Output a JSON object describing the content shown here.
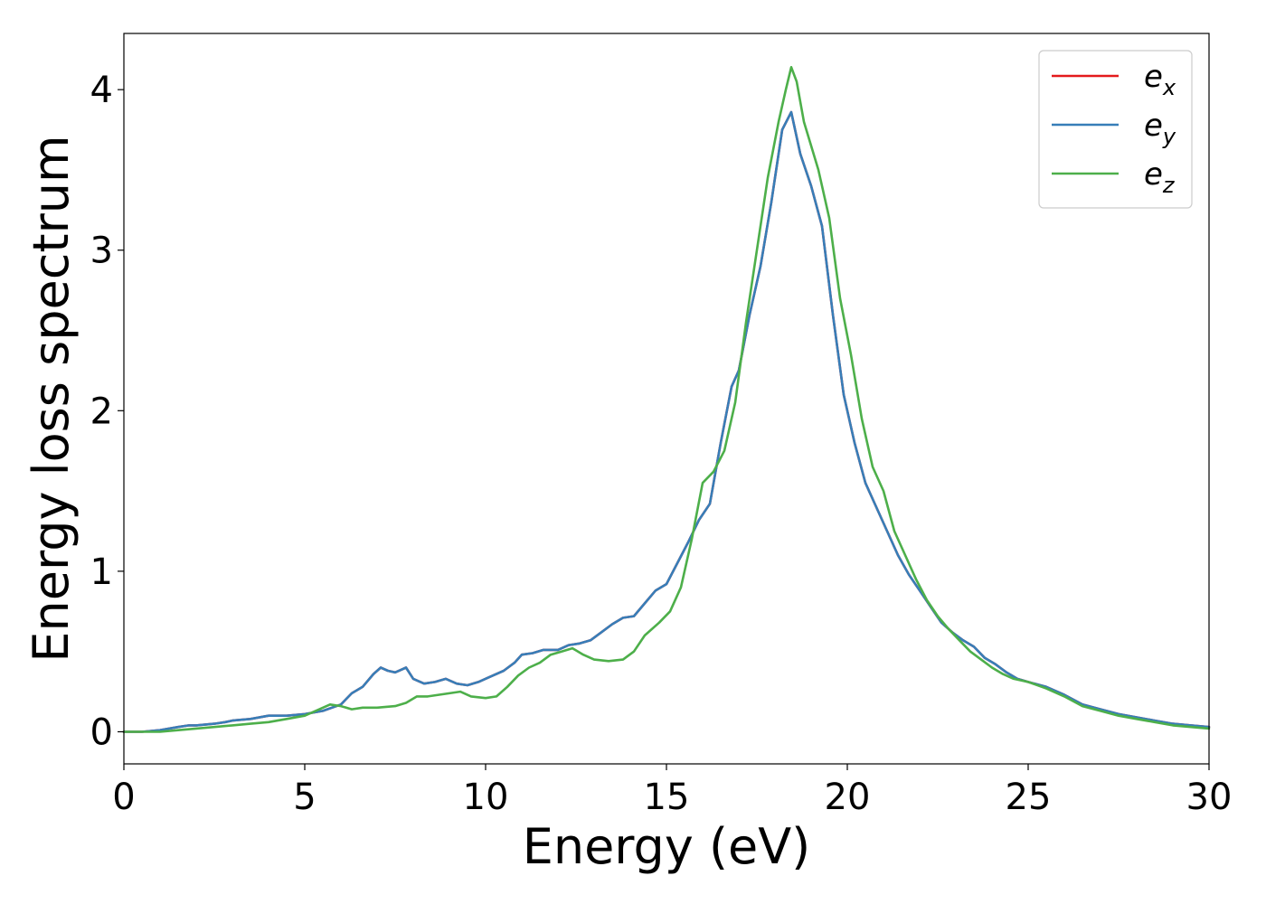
{
  "chart_data": {
    "type": "line",
    "title": "",
    "xlabel": "Energy (eV)",
    "ylabel": "Energy loss spectrum",
    "xlim": [
      0,
      30
    ],
    "ylim": [
      -0.2,
      4.35
    ],
    "xticks": [
      0,
      5,
      10,
      15,
      20,
      25,
      30
    ],
    "yticks": [
      0,
      1,
      2,
      3,
      4
    ],
    "grid": false,
    "legend_position": "top-right",
    "series": [
      {
        "name": "x",
        "color": "#e41a1c",
        "x": [
          0,
          0.5,
          1,
          1.5,
          1.8,
          2,
          2.5,
          2.8,
          3,
          3.5,
          4,
          4.5,
          5,
          5.5,
          6,
          6.3,
          6.6,
          6.9,
          7.1,
          7.3,
          7.5,
          7.8,
          8.0,
          8.3,
          8.6,
          8.9,
          9.2,
          9.5,
          9.8,
          10.1,
          10.5,
          10.8,
          11.0,
          11.3,
          11.6,
          12.0,
          12.3,
          12.6,
          12.9,
          13.2,
          13.5,
          13.8,
          14.1,
          14.4,
          14.7,
          15.0,
          15.3,
          15.6,
          15.9,
          16.2,
          16.5,
          16.8,
          17.0,
          17.3,
          17.6,
          17.9,
          18.2,
          18.45,
          18.7,
          19.0,
          19.3,
          19.6,
          19.9,
          20.2,
          20.5,
          20.8,
          21.1,
          21.4,
          21.7,
          22.0,
          22.3,
          22.6,
          22.9,
          23.2,
          23.5,
          23.8,
          24.1,
          24.4,
          24.7,
          25.0,
          25.5,
          26.0,
          26.5,
          27.0,
          27.5,
          28.0,
          28.5,
          29.0,
          29.5,
          30.0
        ],
        "y": [
          0,
          0,
          0.01,
          0.03,
          0.04,
          0.04,
          0.05,
          0.06,
          0.07,
          0.08,
          0.1,
          0.1,
          0.11,
          0.13,
          0.17,
          0.24,
          0.28,
          0.36,
          0.4,
          0.38,
          0.37,
          0.4,
          0.33,
          0.3,
          0.31,
          0.33,
          0.3,
          0.29,
          0.31,
          0.34,
          0.38,
          0.43,
          0.48,
          0.49,
          0.51,
          0.51,
          0.54,
          0.55,
          0.57,
          0.62,
          0.67,
          0.71,
          0.72,
          0.8,
          0.88,
          0.92,
          1.05,
          1.18,
          1.32,
          1.42,
          1.8,
          2.15,
          2.25,
          2.6,
          2.9,
          3.3,
          3.75,
          3.86,
          3.6,
          3.4,
          3.15,
          2.6,
          2.1,
          1.8,
          1.55,
          1.4,
          1.25,
          1.1,
          0.98,
          0.88,
          0.78,
          0.68,
          0.62,
          0.57,
          0.53,
          0.46,
          0.42,
          0.37,
          0.33,
          0.31,
          0.28,
          0.23,
          0.17,
          0.14,
          0.11,
          0.09,
          0.07,
          0.05,
          0.04,
          0.03
        ]
      },
      {
        "name": "y",
        "color": "#377eb8",
        "x": [
          0,
          0.5,
          1,
          1.5,
          1.8,
          2,
          2.5,
          2.8,
          3,
          3.5,
          4,
          4.5,
          5,
          5.5,
          6,
          6.3,
          6.6,
          6.9,
          7.1,
          7.3,
          7.5,
          7.8,
          8.0,
          8.3,
          8.6,
          8.9,
          9.2,
          9.5,
          9.8,
          10.1,
          10.5,
          10.8,
          11.0,
          11.3,
          11.6,
          12.0,
          12.3,
          12.6,
          12.9,
          13.2,
          13.5,
          13.8,
          14.1,
          14.4,
          14.7,
          15.0,
          15.3,
          15.6,
          15.9,
          16.2,
          16.5,
          16.8,
          17.0,
          17.3,
          17.6,
          17.9,
          18.2,
          18.45,
          18.7,
          19.0,
          19.3,
          19.6,
          19.9,
          20.2,
          20.5,
          20.8,
          21.1,
          21.4,
          21.7,
          22.0,
          22.3,
          22.6,
          22.9,
          23.2,
          23.5,
          23.8,
          24.1,
          24.4,
          24.7,
          25.0,
          25.5,
          26.0,
          26.5,
          27.0,
          27.5,
          28.0,
          28.5,
          29.0,
          29.5,
          30.0
        ],
        "y": [
          0,
          0,
          0.01,
          0.03,
          0.04,
          0.04,
          0.05,
          0.06,
          0.07,
          0.08,
          0.1,
          0.1,
          0.11,
          0.13,
          0.17,
          0.24,
          0.28,
          0.36,
          0.4,
          0.38,
          0.37,
          0.4,
          0.33,
          0.3,
          0.31,
          0.33,
          0.3,
          0.29,
          0.31,
          0.34,
          0.38,
          0.43,
          0.48,
          0.49,
          0.51,
          0.51,
          0.54,
          0.55,
          0.57,
          0.62,
          0.67,
          0.71,
          0.72,
          0.8,
          0.88,
          0.92,
          1.05,
          1.18,
          1.32,
          1.42,
          1.8,
          2.15,
          2.25,
          2.6,
          2.9,
          3.3,
          3.75,
          3.86,
          3.6,
          3.4,
          3.15,
          2.6,
          2.1,
          1.8,
          1.55,
          1.4,
          1.25,
          1.1,
          0.98,
          0.88,
          0.78,
          0.68,
          0.62,
          0.57,
          0.53,
          0.46,
          0.42,
          0.37,
          0.33,
          0.31,
          0.28,
          0.23,
          0.17,
          0.14,
          0.11,
          0.09,
          0.07,
          0.05,
          0.04,
          0.03
        ]
      },
      {
        "name": "z",
        "color": "#4daf4a",
        "x": [
          0,
          0.5,
          1,
          1.5,
          2,
          2.5,
          3,
          3.5,
          4,
          4.5,
          5,
          5.3,
          5.7,
          6.0,
          6.3,
          6.6,
          7.0,
          7.5,
          7.8,
          8.1,
          8.4,
          8.7,
          9.0,
          9.3,
          9.6,
          10.0,
          10.3,
          10.6,
          10.9,
          11.2,
          11.5,
          11.8,
          12.1,
          12.4,
          12.7,
          13.0,
          13.4,
          13.8,
          14.1,
          14.4,
          14.8,
          15.1,
          15.4,
          15.7,
          16.0,
          16.3,
          16.6,
          16.9,
          17.2,
          17.5,
          17.8,
          18.1,
          18.3,
          18.45,
          18.6,
          18.8,
          19.0,
          19.2,
          19.5,
          19.8,
          20.1,
          20.4,
          20.7,
          21.0,
          21.3,
          21.6,
          21.9,
          22.2,
          22.5,
          22.8,
          23.1,
          23.4,
          23.7,
          24.0,
          24.3,
          24.6,
          25.0,
          25.5,
          26.0,
          26.5,
          27.0,
          27.5,
          28.0,
          28.5,
          29.0,
          29.5,
          30.0
        ],
        "y": [
          0,
          0,
          0,
          0.01,
          0.02,
          0.03,
          0.04,
          0.05,
          0.06,
          0.08,
          0.1,
          0.13,
          0.17,
          0.16,
          0.14,
          0.15,
          0.15,
          0.16,
          0.18,
          0.22,
          0.22,
          0.23,
          0.24,
          0.25,
          0.22,
          0.21,
          0.22,
          0.28,
          0.35,
          0.4,
          0.43,
          0.48,
          0.5,
          0.52,
          0.48,
          0.45,
          0.44,
          0.45,
          0.5,
          0.6,
          0.68,
          0.75,
          0.9,
          1.2,
          1.55,
          1.62,
          1.75,
          2.05,
          2.55,
          3.0,
          3.45,
          3.8,
          4.0,
          4.14,
          4.05,
          3.8,
          3.65,
          3.5,
          3.2,
          2.7,
          2.35,
          1.95,
          1.65,
          1.5,
          1.25,
          1.1,
          0.95,
          0.82,
          0.72,
          0.64,
          0.57,
          0.5,
          0.45,
          0.4,
          0.36,
          0.33,
          0.31,
          0.27,
          0.22,
          0.16,
          0.13,
          0.1,
          0.08,
          0.06,
          0.04,
          0.03,
          0.02
        ]
      }
    ]
  }
}
